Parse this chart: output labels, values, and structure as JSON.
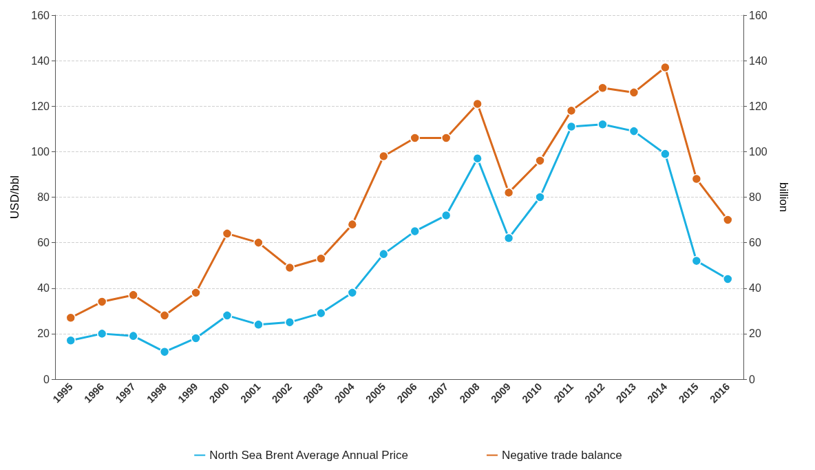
{
  "chart_data": {
    "type": "line",
    "ylabel": "USD/bbl",
    "y2label": "billion",
    "categories": [
      "1995",
      "1996",
      "1997",
      "1998",
      "1999",
      "2000",
      "2001",
      "2002",
      "2003",
      "2004",
      "2005",
      "2006",
      "2007",
      "2008",
      "2009",
      "2010",
      "2011",
      "2012",
      "2013",
      "2014",
      "2015",
      "2016"
    ],
    "series": [
      {
        "name": "North Sea Brent Average Annual Price",
        "color": "#1ab0e2",
        "values": [
          17,
          20,
          19,
          12,
          18,
          28,
          24,
          25,
          29,
          38,
          55,
          65,
          72,
          97,
          62,
          80,
          111,
          112,
          109,
          99,
          52,
          44
        ]
      },
      {
        "name": "Negative trade balance",
        "color": "#d9691c",
        "axis": "y2",
        "values": [
          27,
          34,
          37,
          28,
          38,
          64,
          60,
          49,
          53,
          68,
          98,
          106,
          106,
          121,
          82,
          96,
          118,
          128,
          126,
          137,
          88,
          70
        ]
      }
    ],
    "ylim": [
      0,
      160
    ],
    "yticks": [
      0,
      20,
      40,
      60,
      80,
      100,
      120,
      140,
      160
    ],
    "y2lim": [
      0,
      160
    ],
    "y2ticks": [
      0,
      20,
      40,
      60,
      80,
      100,
      120,
      140,
      160
    ],
    "grid": "y",
    "legend": "bottom",
    "marker": "circle",
    "line_style": "solid"
  }
}
